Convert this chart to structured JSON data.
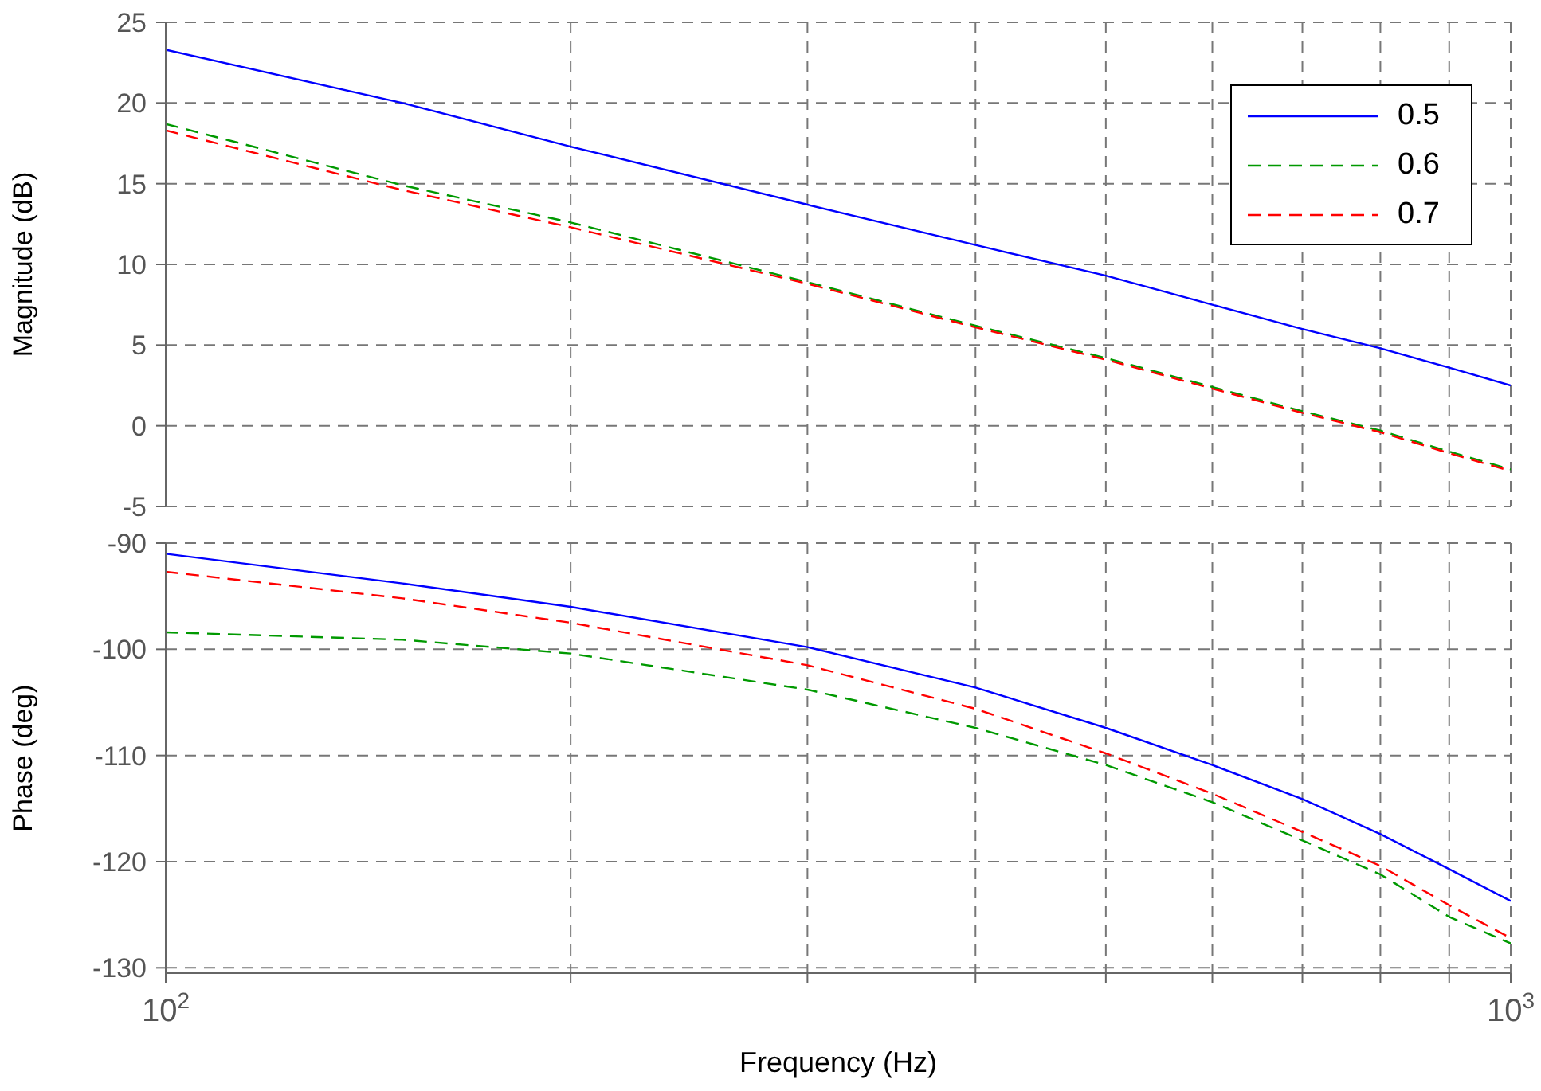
{
  "chart_data": [
    {
      "type": "line",
      "ylabel": "Magnitude (dB)",
      "x": [
        100,
        150,
        200,
        300,
        400,
        500,
        600,
        700,
        800,
        900,
        1000
      ],
      "log": "x",
      "xlim": [
        100,
        1000
      ],
      "xticks": [
        100,
        200,
        300,
        400,
        500,
        600,
        700,
        800,
        900,
        1000
      ],
      "ylim": [
        -5,
        25
      ],
      "yticks": [
        -5,
        0,
        5,
        10,
        15,
        20,
        25
      ],
      "grid": true,
      "legend": "top right",
      "tick_labels": "y",
      "series": [
        {
          "name": "0.5",
          "color": "#0000ff",
          "line_style": "solid",
          "values": [
            23.3,
            20.0,
            17.3,
            13.7,
            11.2,
            9.3,
            7.5,
            6.0,
            4.8,
            3.6,
            2.5
          ]
        },
        {
          "name": "0.6",
          "color": "#009900",
          "line_style": "dashed",
          "values": [
            18.7,
            14.9,
            12.6,
            8.9,
            6.2,
            4.2,
            2.4,
            0.9,
            -0.3,
            -1.6,
            -2.7
          ]
        },
        {
          "name": "0.7",
          "color": "#ff0000",
          "line_style": "dashed",
          "values": [
            18.3,
            14.6,
            12.3,
            8.8,
            6.1,
            4.1,
            2.3,
            0.8,
            -0.4,
            -1.7,
            -2.8
          ]
        }
      ]
    },
    {
      "type": "line",
      "ylabel": "Phase (deg)",
      "xlabel": "Frequency  (Hz)",
      "x": [
        100,
        150,
        200,
        300,
        400,
        500,
        600,
        700,
        800,
        900,
        1000
      ],
      "log": "x",
      "xlim": [
        100,
        1000
      ],
      "xticks": [
        {
          "value": 100,
          "label": "10$^{2}$"
        },
        {
          "value": 200,
          "label": null
        },
        {
          "value": 300,
          "label": null
        },
        {
          "value": 400,
          "label": null
        },
        {
          "value": 500,
          "label": null
        },
        {
          "value": 600,
          "label": null
        },
        {
          "value": 700,
          "label": null
        },
        {
          "value": 800,
          "label": null
        },
        {
          "value": 900,
          "label": null
        },
        {
          "value": 1000,
          "label": "10$^{3}$"
        }
      ],
      "ylim": [
        -130.5,
        -90
      ],
      "yticks": [
        -130,
        -120,
        -110,
        -100,
        -90
      ],
      "grid": true,
      "series": [
        {
          "color": "#0000ff",
          "line_style": "solid",
          "values": [
            -91,
            -93.8,
            -96,
            -99.8,
            -103.6,
            -107.4,
            -110.9,
            -114.1,
            -117.4,
            -120.7,
            -123.7
          ]
        },
        {
          "color": "#009900",
          "line_style": "dashed",
          "values": [
            -98.4,
            -99.1,
            -100.4,
            -103.8,
            -107.4,
            -110.9,
            -114.4,
            -118,
            -121.2,
            -125.2,
            -127.7
          ]
        },
        {
          "color": "#ff0000",
          "line_style": "dashed",
          "values": [
            -92.7,
            -95.2,
            -97.5,
            -101.5,
            -105.6,
            -109.8,
            -113.6,
            -117.2,
            -120.4,
            -124.1,
            -127.2
          ]
        }
      ]
    }
  ]
}
